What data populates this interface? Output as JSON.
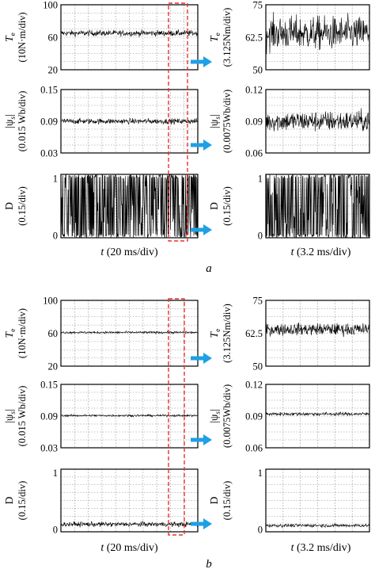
{
  "panels": [
    {
      "label": "a",
      "xlabel_left": "t (20 ms/div)",
      "xlabel_right": "t (3.2 ms/div)",
      "rows": [
        {
          "id": "torque",
          "ylabel_left": [
            "T",
            "e",
            "(10N·m/div)"
          ],
          "ylabel_right": [
            "T",
            "e",
            "(3.125Nm/div)"
          ],
          "left_ticks": [
            "100",
            "60",
            "20"
          ],
          "right_ticks": [
            "75",
            "62.5",
            "50"
          ],
          "left_range": [
            20,
            100
          ],
          "right_range": [
            50,
            75
          ]
        },
        {
          "id": "flux",
          "ylabel_left": [
            "|ψ",
            "s",
            "|",
            "(0.015 Wb/div)"
          ],
          "ylabel_right": [
            "|ψ",
            "s",
            "|",
            "(0.0075Wb/div)"
          ],
          "left_ticks": [
            "0.15",
            "0.09",
            "0.03"
          ],
          "right_ticks": [
            "0.12",
            "0.09",
            "0.06"
          ],
          "left_range": [
            0.03,
            0.15
          ],
          "right_range": [
            0.06,
            0.12
          ]
        },
        {
          "id": "duty",
          "ylabel_left": [
            "D",
            "",
            "(0.15/div)"
          ],
          "ylabel_right": [
            "D",
            "",
            "(0.15/div)"
          ],
          "left_ticks": [
            "1",
            "0"
          ],
          "right_ticks": [
            "1",
            "0"
          ],
          "left_range": [
            0,
            1
          ],
          "right_range": [
            0,
            1
          ]
        }
      ]
    },
    {
      "label": "b",
      "xlabel_left": "t (20 ms/div)",
      "xlabel_right": "t (3.2 ms/div)",
      "rows": [
        {
          "id": "torque",
          "ylabel_left": [
            "T",
            "e",
            "(10N·m/div)"
          ],
          "ylabel_right": [
            "T",
            "e",
            "(3.125Nm/div)"
          ],
          "left_ticks": [
            "100",
            "60",
            "20"
          ],
          "right_ticks": [
            "75",
            "62.5",
            "50"
          ],
          "left_range": [
            20,
            100
          ],
          "right_range": [
            50,
            75
          ]
        },
        {
          "id": "flux",
          "ylabel_left": [
            "|ψ",
            "s",
            "|",
            "(0.015 Wb/div)"
          ],
          "ylabel_right": [
            "|ψ",
            "s",
            "|",
            "(0.0075Wb/div)"
          ],
          "left_ticks": [
            "0.15",
            "0.09",
            "0.03"
          ],
          "right_ticks": [
            "0.12",
            "0.09",
            "0.06"
          ],
          "left_range": [
            0.03,
            0.15
          ],
          "right_range": [
            0.06,
            0.12
          ]
        },
        {
          "id": "duty",
          "ylabel_left": [
            "D",
            "",
            "(0.15/div)"
          ],
          "ylabel_right": [
            "D",
            "",
            "(0.15/div)"
          ],
          "left_ticks": [
            "1",
            "0"
          ],
          "right_ticks": [
            "1",
            "0"
          ],
          "left_range": [
            0,
            1
          ],
          "right_range": [
            0,
            1
          ]
        }
      ]
    }
  ],
  "chart_data": {
    "type": "line",
    "description_type": "oscilloscope waveforms",
    "series": [
      {
        "panel": "a",
        "row": "torque",
        "view": "left",
        "mean": 65,
        "band": [
          60,
          71
        ],
        "ylim": [
          20,
          100
        ]
      },
      {
        "panel": "a",
        "row": "torque",
        "view": "right",
        "mean": 64,
        "band": [
          53,
          73
        ],
        "ylim": [
          50,
          75
        ]
      },
      {
        "panel": "a",
        "row": "flux",
        "view": "left",
        "mean": 0.09,
        "band": [
          0.082,
          0.098
        ],
        "ylim": [
          0.03,
          0.15
        ]
      },
      {
        "panel": "a",
        "row": "flux",
        "view": "right",
        "mean": 0.09,
        "band": [
          0.075,
          0.105
        ],
        "ylim": [
          0.06,
          0.12
        ]
      },
      {
        "panel": "a",
        "row": "duty",
        "view": "left",
        "mean": 0.4,
        "band": [
          0,
          1
        ],
        "ylim": [
          0,
          1
        ]
      },
      {
        "panel": "a",
        "row": "duty",
        "view": "right",
        "mean": 0.55,
        "band": [
          0,
          1
        ],
        "ylim": [
          0,
          1
        ]
      },
      {
        "panel": "b",
        "row": "torque",
        "view": "left",
        "mean": 61,
        "band": [
          59,
          63
        ],
        "ylim": [
          20,
          100
        ]
      },
      {
        "panel": "b",
        "row": "torque",
        "view": "right",
        "mean": 64,
        "band": [
          61,
          68
        ],
        "ylim": [
          50,
          75
        ]
      },
      {
        "panel": "b",
        "row": "flux",
        "view": "left",
        "mean": 0.091,
        "band": [
          0.088,
          0.094
        ],
        "ylim": [
          0.03,
          0.15
        ]
      },
      {
        "panel": "b",
        "row": "flux",
        "view": "right",
        "mean": 0.092,
        "band": [
          0.09,
          0.095
        ],
        "ylim": [
          0.06,
          0.12
        ]
      },
      {
        "panel": "b",
        "row": "duty",
        "view": "left",
        "mean": 0.12,
        "band": [
          0.06,
          0.18
        ],
        "ylim": [
          0,
          1
        ]
      },
      {
        "panel": "b",
        "row": "duty",
        "view": "right",
        "mean": 0.1,
        "band": [
          0.06,
          0.14
        ],
        "ylim": [
          0,
          1
        ]
      }
    ],
    "grid": true,
    "zoom_window_color": "#e8302f",
    "arrow_color": "#1ea0e6",
    "trace_color": "#000000"
  }
}
